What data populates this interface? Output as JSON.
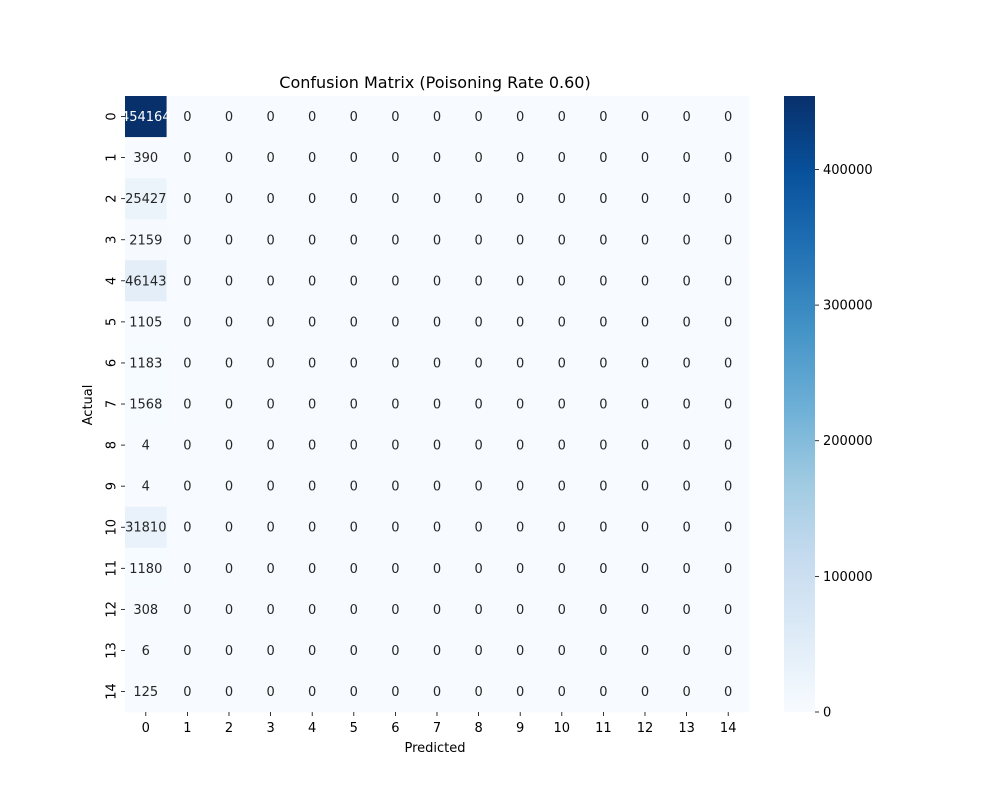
{
  "chart_data": {
    "type": "heatmap",
    "title": "Confusion Matrix (Poisoning Rate 0.60)",
    "xlabel": "Predicted",
    "ylabel": "Actual",
    "x_categories": [
      "0",
      "1",
      "2",
      "3",
      "4",
      "5",
      "6",
      "7",
      "8",
      "9",
      "10",
      "11",
      "12",
      "13",
      "14"
    ],
    "y_categories": [
      "0",
      "1",
      "2",
      "3",
      "4",
      "5",
      "6",
      "7",
      "8",
      "9",
      "10",
      "11",
      "12",
      "13",
      "14"
    ],
    "values": [
      [
        454164,
        0,
        0,
        0,
        0,
        0,
        0,
        0,
        0,
        0,
        0,
        0,
        0,
        0,
        0
      ],
      [
        390,
        0,
        0,
        0,
        0,
        0,
        0,
        0,
        0,
        0,
        0,
        0,
        0,
        0,
        0
      ],
      [
        25427,
        0,
        0,
        0,
        0,
        0,
        0,
        0,
        0,
        0,
        0,
        0,
        0,
        0,
        0
      ],
      [
        2159,
        0,
        0,
        0,
        0,
        0,
        0,
        0,
        0,
        0,
        0,
        0,
        0,
        0,
        0
      ],
      [
        46143,
        0,
        0,
        0,
        0,
        0,
        0,
        0,
        0,
        0,
        0,
        0,
        0,
        0,
        0
      ],
      [
        1105,
        0,
        0,
        0,
        0,
        0,
        0,
        0,
        0,
        0,
        0,
        0,
        0,
        0,
        0
      ],
      [
        1183,
        0,
        0,
        0,
        0,
        0,
        0,
        0,
        0,
        0,
        0,
        0,
        0,
        0,
        0
      ],
      [
        1568,
        0,
        0,
        0,
        0,
        0,
        0,
        0,
        0,
        0,
        0,
        0,
        0,
        0,
        0
      ],
      [
        4,
        0,
        0,
        0,
        0,
        0,
        0,
        0,
        0,
        0,
        0,
        0,
        0,
        0,
        0
      ],
      [
        4,
        0,
        0,
        0,
        0,
        0,
        0,
        0,
        0,
        0,
        0,
        0,
        0,
        0,
        0
      ],
      [
        31810,
        0,
        0,
        0,
        0,
        0,
        0,
        0,
        0,
        0,
        0,
        0,
        0,
        0,
        0
      ],
      [
        1180,
        0,
        0,
        0,
        0,
        0,
        0,
        0,
        0,
        0,
        0,
        0,
        0,
        0,
        0
      ],
      [
        308,
        0,
        0,
        0,
        0,
        0,
        0,
        0,
        0,
        0,
        0,
        0,
        0,
        0,
        0
      ],
      [
        6,
        0,
        0,
        0,
        0,
        0,
        0,
        0,
        0,
        0,
        0,
        0,
        0,
        0,
        0
      ],
      [
        125,
        0,
        0,
        0,
        0,
        0,
        0,
        0,
        0,
        0,
        0,
        0,
        0,
        0,
        0
      ]
    ],
    "colormap": "Blues",
    "colorbar": {
      "range": [
        0,
        454164
      ],
      "ticks": [
        0,
        100000,
        200000,
        300000,
        400000
      ],
      "tick_labels": [
        "0",
        "100000",
        "200000",
        "300000",
        "400000"
      ]
    },
    "grid": false,
    "legend": "none"
  }
}
